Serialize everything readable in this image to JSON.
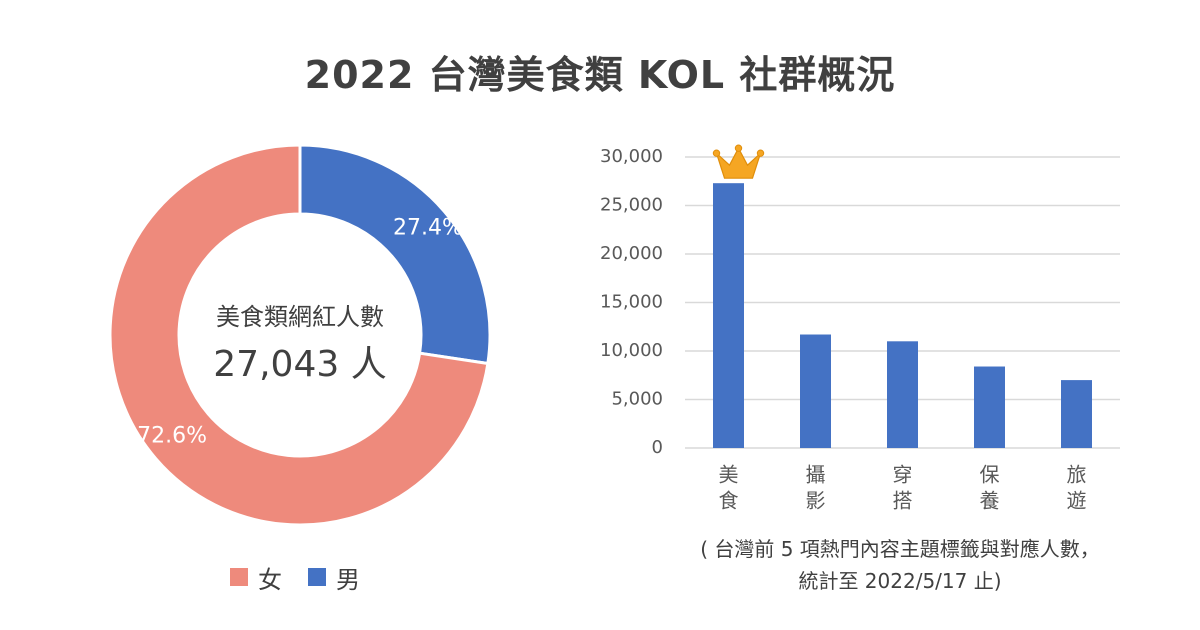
{
  "title": "2022 台灣美食類 KOL 社群概況",
  "chart_data": [
    {
      "type": "pie",
      "variant": "donut",
      "center_label": "美食類網紅人數",
      "center_value": "27,043 人",
      "categories": [
        "男",
        "女"
      ],
      "values": [
        27.4,
        72.6
      ],
      "data_labels": [
        "27.4%",
        "72.6%"
      ],
      "colors": [
        "#4472C4",
        "#EE8A7C"
      ],
      "legend": [
        {
          "label": "女",
          "color": "#EE8A7C"
        },
        {
          "label": "男",
          "color": "#4472C4"
        }
      ],
      "legend_placement": "bottom"
    },
    {
      "type": "bar",
      "categories": [
        "美食",
        "攝影",
        "穿搭",
        "保養",
        "旅遊"
      ],
      "values": [
        27300,
        11700,
        11000,
        8400,
        7000
      ],
      "y_ticks": [
        "0",
        "5,000",
        "10,000",
        "15,000",
        "20,000",
        "25,000",
        "30,000"
      ],
      "ylim": [
        0,
        30000
      ],
      "grid": true,
      "bar_color": "#4472C4",
      "highlight_icon": "crown-icon",
      "highlight_color": "#F5A623",
      "note": [
        "( 台灣前 5 項熱門內容主題標籤與對應人數，",
        "統計至 2022/5/17 止)"
      ]
    }
  ]
}
